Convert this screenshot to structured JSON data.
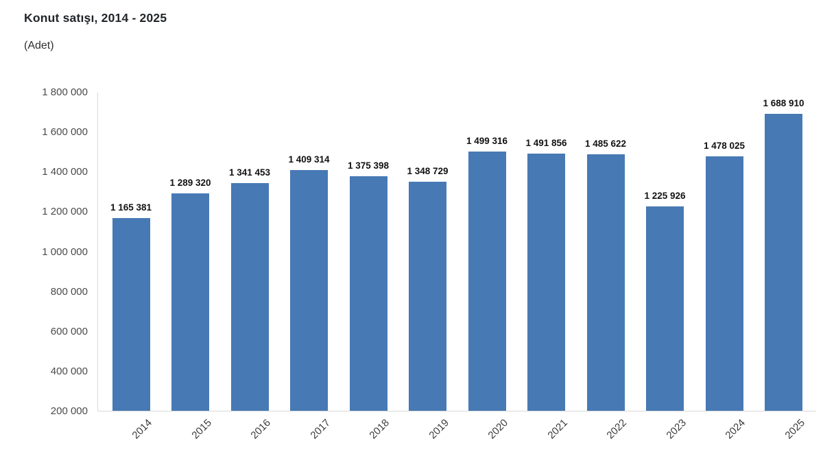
{
  "header": {
    "title": "Konut satışı, 2014 - 2025",
    "subtitle": "(Adet)"
  },
  "chart_data": {
    "type": "bar",
    "title": "Konut satışı, 2014 - 2025",
    "subtitle": "(Adet)",
    "xlabel": "",
    "ylabel": "",
    "categories": [
      "2014",
      "2015",
      "2016",
      "2017",
      "2018",
      "2019",
      "2020",
      "2021",
      "2022",
      "2023",
      "2024",
      "2025"
    ],
    "values": [
      1165381,
      1289320,
      1341453,
      1409314,
      1375398,
      1348729,
      1499316,
      1491856,
      1485622,
      1225926,
      1478025,
      1688910
    ],
    "value_labels": [
      "1 165 381",
      "1 289 320",
      "1 341 453",
      "1 409 314",
      "1 375 398",
      "1 348 729",
      "1 499 316",
      "1 491 856",
      "1 485 622",
      "1 225 926",
      "1 478 025",
      "1 688 910"
    ],
    "ylim": [
      200000,
      1800000
    ],
    "ytick_step": 200000,
    "ytick_labels": [
      "200 000",
      "400 000",
      "600 000",
      "800 000",
      "1 000 000",
      "1 200 000",
      "1 400 000",
      "1 600 000",
      "1 800 000"
    ],
    "grid": false,
    "legend": "none",
    "colors": {
      "bar": "#4779B4",
      "axis_line": "#d8d8d8",
      "ytick_text": "#4a4a4a",
      "xtick_text": "#3c3c3c",
      "value_label_text": "#111111",
      "title_text": "#212529",
      "background": "#ffffff"
    }
  }
}
